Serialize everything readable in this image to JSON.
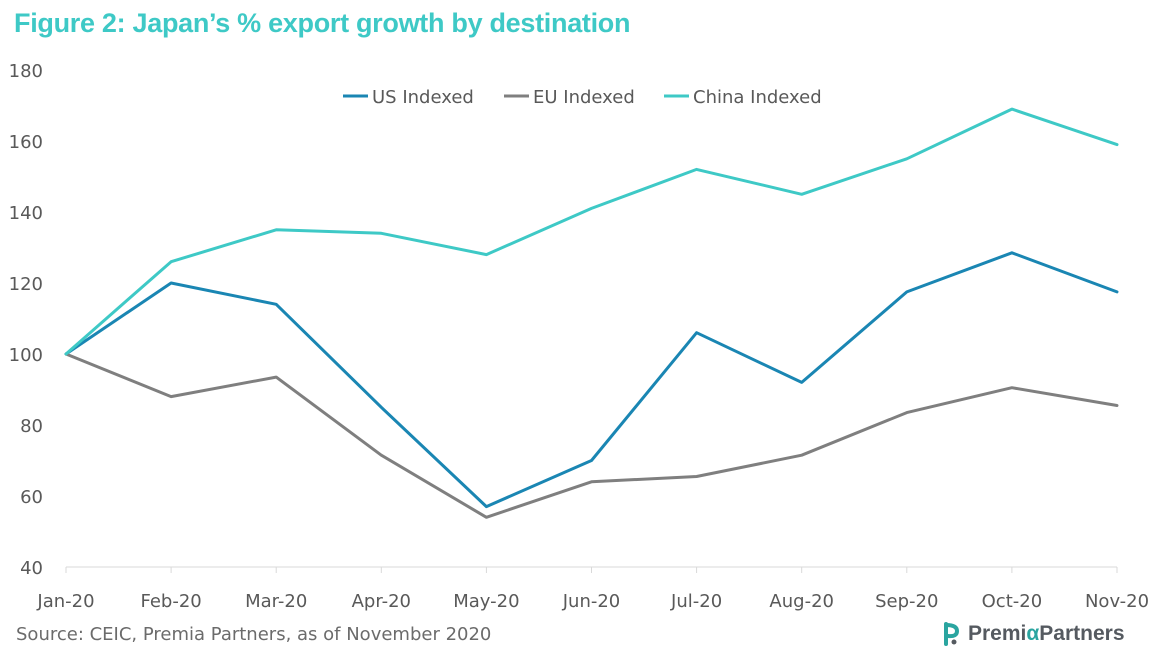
{
  "title": "Figure 2: Japan’s % export growth by destination",
  "source": "Source: CEIC, Premia Partners, as of November 2020",
  "logo": {
    "part1": "Premi",
    "alpha": "α",
    "part2": "Partners"
  },
  "chart_data": {
    "type": "line",
    "categories": [
      "Jan-20",
      "Feb-20",
      "Mar-20",
      "Apr-20",
      "May-20",
      "Jun-20",
      "Jul-20",
      "Aug-20",
      "Sep-20",
      "Oct-20",
      "Nov-20"
    ],
    "ylim": [
      40,
      180
    ],
    "yticks": [
      40,
      60,
      80,
      100,
      120,
      140,
      160,
      180
    ],
    "legend_position": "top-center",
    "grid": false,
    "series": [
      {
        "name": "US Indexed",
        "color": "#1a86b3",
        "values": [
          100,
          120,
          114,
          85,
          57,
          70,
          106,
          92,
          117.5,
          128.5,
          117.5
        ]
      },
      {
        "name": "EU Indexed",
        "color": "#7f7f7f",
        "values": [
          100,
          88,
          93.5,
          71.5,
          54,
          64,
          65.5,
          71.5,
          83.5,
          90.5,
          85.5
        ]
      },
      {
        "name": "China Indexed",
        "color": "#3ec9c6",
        "values": [
          100,
          126,
          135,
          134,
          128,
          141,
          152,
          145,
          155,
          169,
          159
        ]
      }
    ]
  }
}
